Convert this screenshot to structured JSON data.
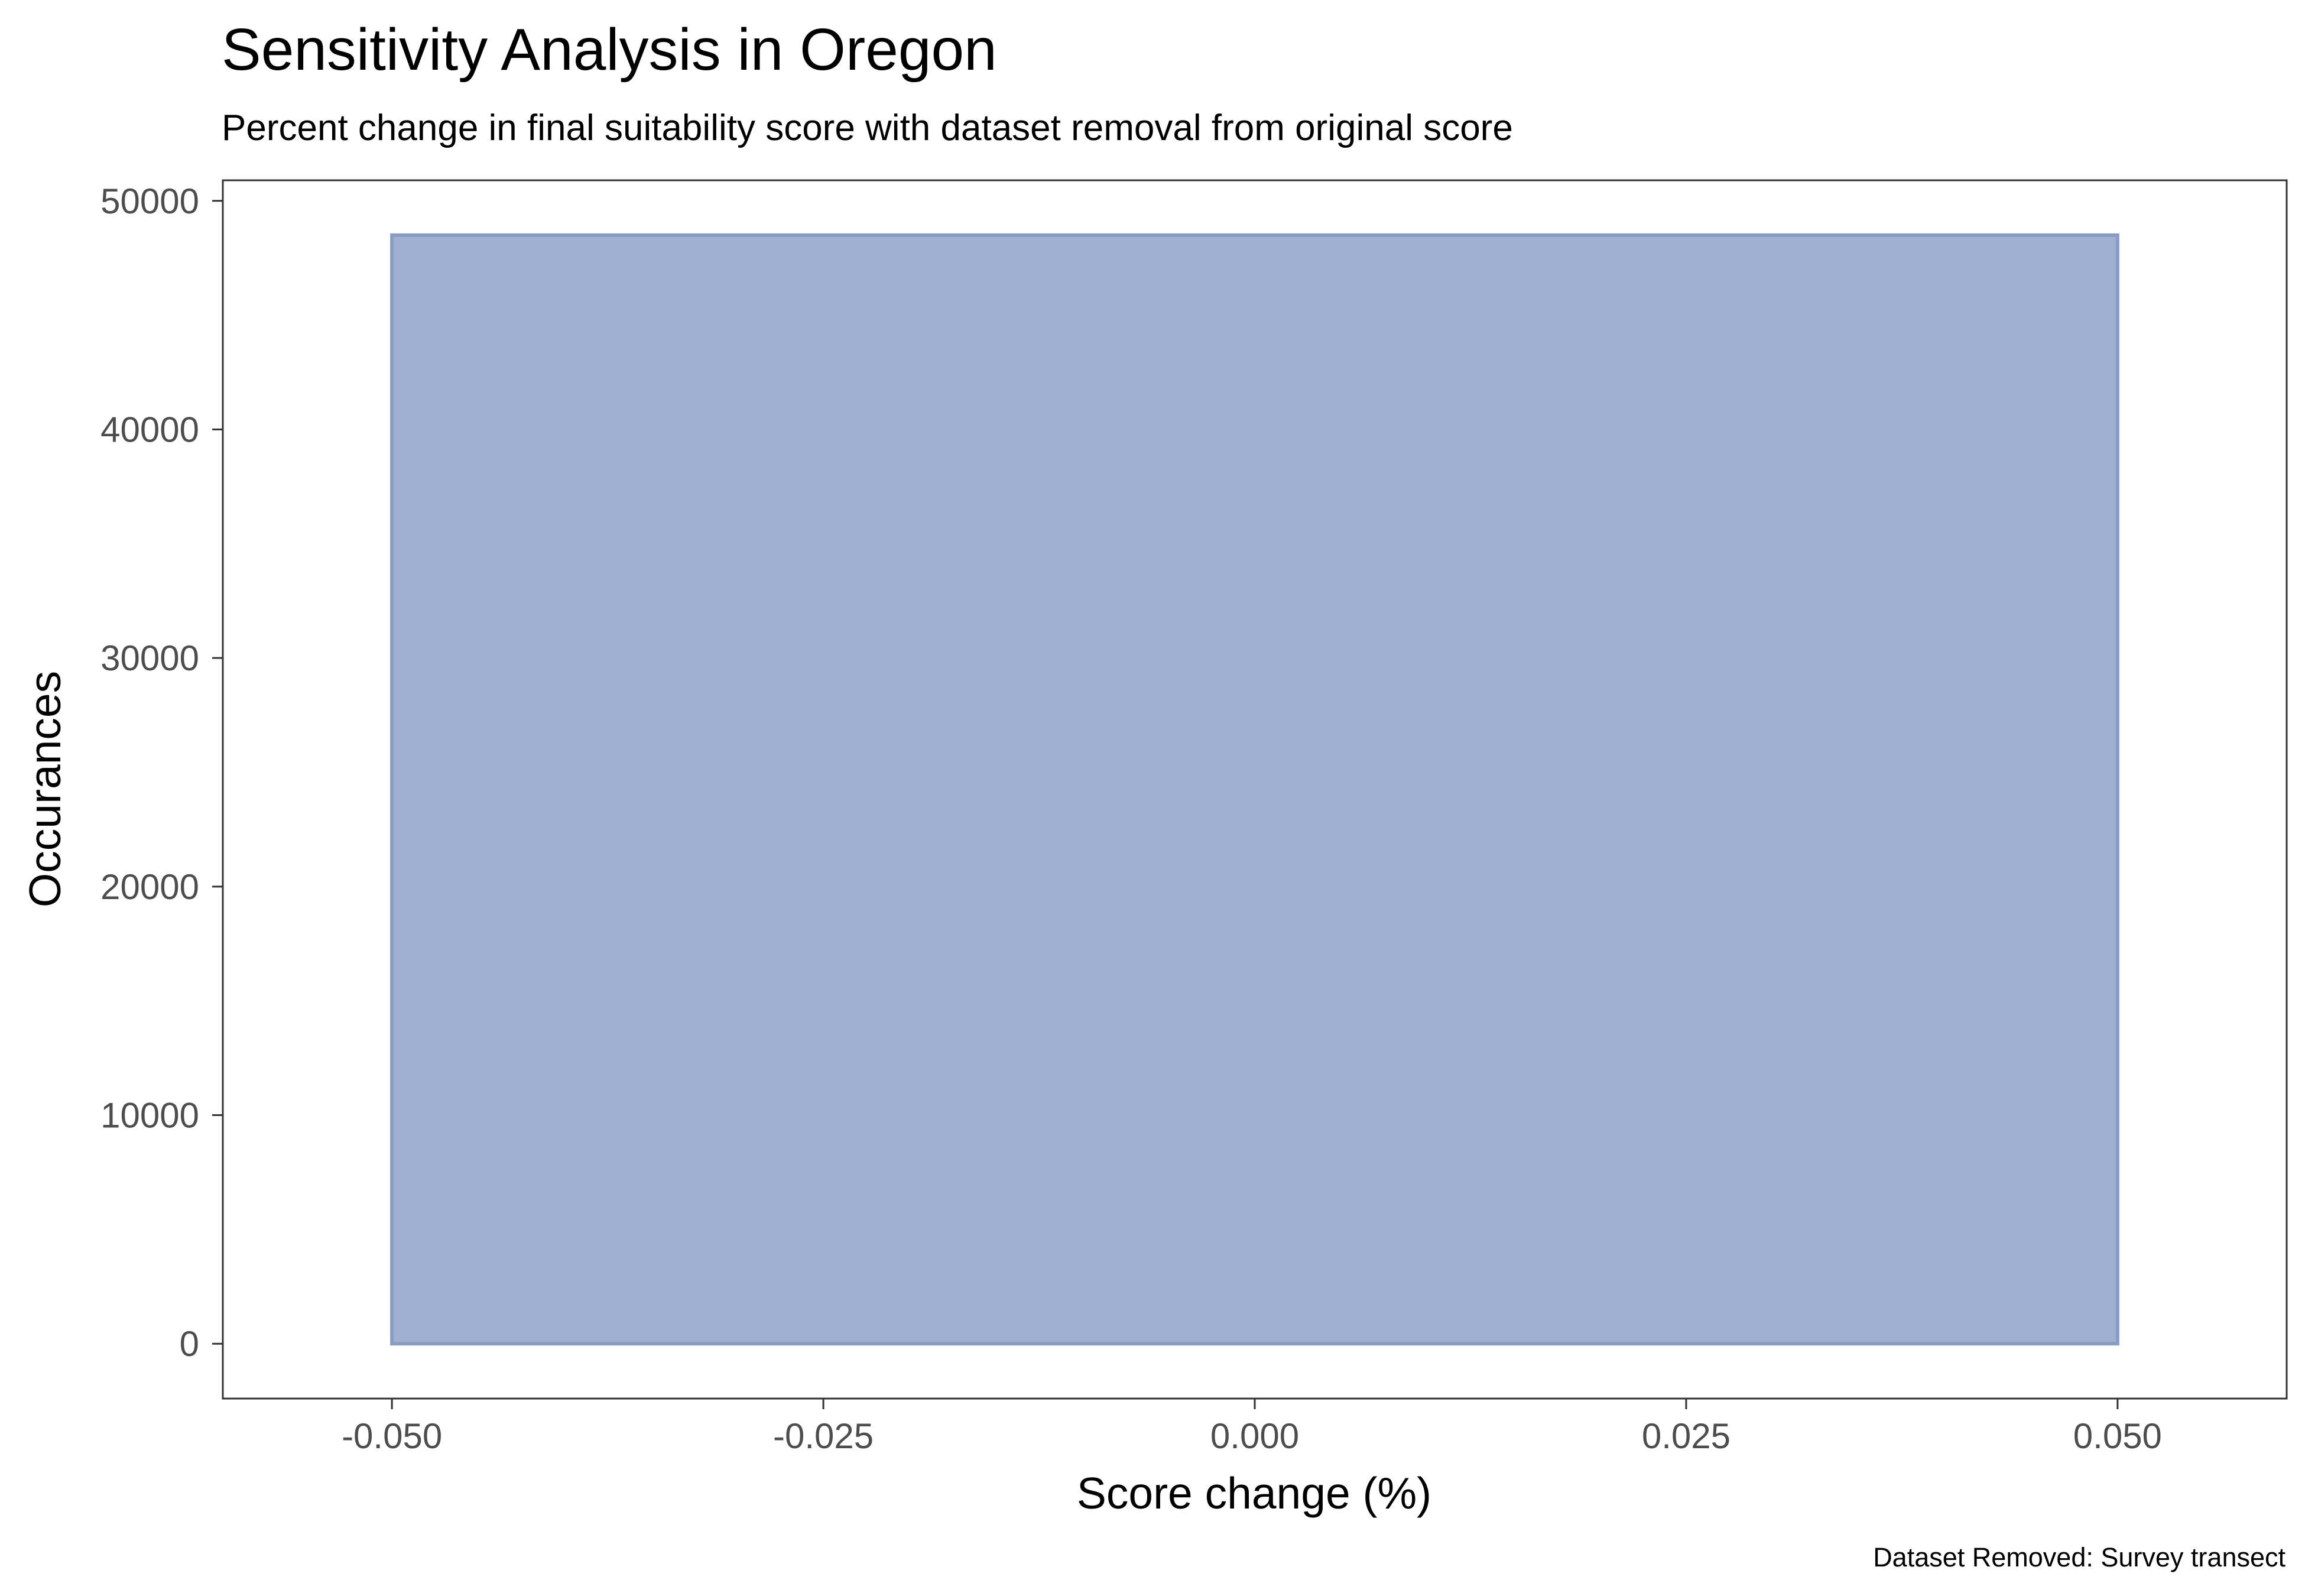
{
  "chart_data": {
    "type": "bar",
    "title": "Sensitivity Analysis in Oregon",
    "subtitle": "Percent change in final suitability score with dataset removal from original score",
    "xlabel": "Score change (%)",
    "ylabel": "Occurances",
    "caption": "Dataset Removed: Survey transect",
    "xlim": [
      -0.0598,
      0.0598
    ],
    "ylim": [
      -2400,
      50900
    ],
    "x_ticks": [
      {
        "value": -0.05,
        "label": "-0.050"
      },
      {
        "value": -0.025,
        "label": "-0.025"
      },
      {
        "value": 0,
        "label": "0.000"
      },
      {
        "value": 0.025,
        "label": "0.025"
      },
      {
        "value": 0.05,
        "label": "0.050"
      }
    ],
    "y_ticks": [
      {
        "value": 0,
        "label": "0"
      },
      {
        "value": 10000,
        "label": "10000"
      },
      {
        "value": 20000,
        "label": "20000"
      },
      {
        "value": 30000,
        "label": "30000"
      },
      {
        "value": 40000,
        "label": "40000"
      },
      {
        "value": 50000,
        "label": "50000"
      }
    ],
    "bins": [
      {
        "x_start": -0.05,
        "x_end": 0.05,
        "count": 48500
      }
    ],
    "grid": false,
    "legend": "none",
    "colors": {
      "bar_fill": "#a0b0d0",
      "bar_stroke": "#8a9cc4",
      "axis": "#333333",
      "tick_label": "#4d4d4d",
      "text": "#000000"
    }
  }
}
